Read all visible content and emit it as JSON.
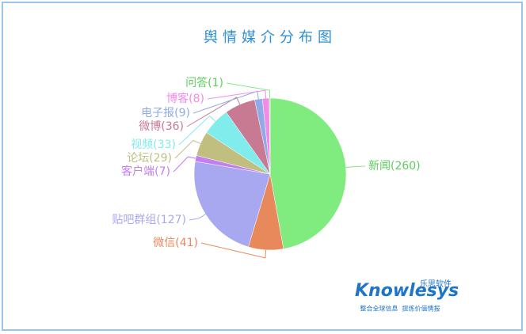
{
  "chart_data": {
    "type": "pie",
    "title": "舆情媒介分布图",
    "values": [
      260,
      41,
      127,
      7,
      29,
      33,
      36,
      9,
      8,
      1
    ],
    "value_labels": [
      "新闻(260)",
      "微信(41)",
      "贴吧群组(127)",
      "客户端(7)",
      "论坛(29)",
      "视频(33)",
      "微博(36)",
      "电子报(9)",
      "博客(8)",
      "问答(1)"
    ],
    "colors": [
      "#80eb7e",
      "#e8895c",
      "#a8a8f0",
      "#c37ff0",
      "#c0bf80",
      "#80ecec",
      "#c87a93",
      "#8faae6",
      "#f28be6",
      "#80eb7e"
    ]
  },
  "logo": {
    "name": "Knowlesys",
    "cn": "乐思软件",
    "slogan": "整合全球信息  提炼价值情报"
  }
}
